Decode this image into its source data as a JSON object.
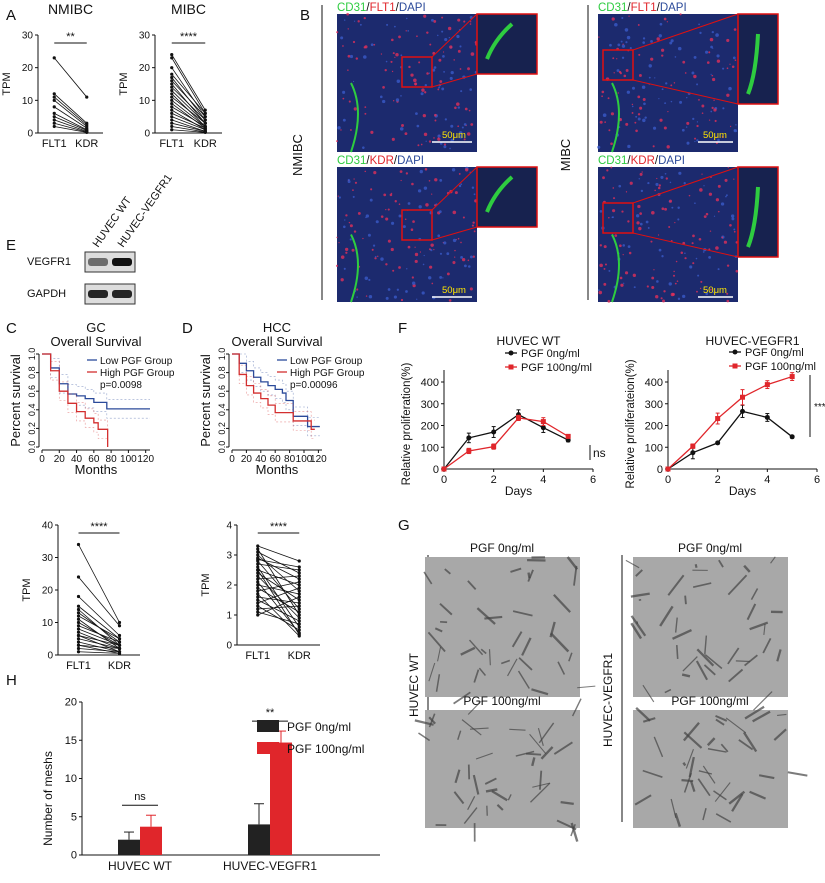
{
  "panel_labels": {
    "A": "A",
    "B": "B",
    "C": "C",
    "D": "D",
    "E": "E",
    "F": "F",
    "G": "G",
    "H": "H"
  },
  "colors": {
    "black": "#1a1a1a",
    "red": "#e0262b",
    "blue": "#2b4a9a",
    "km_red": "#d32f2f",
    "green": "#2ecc40",
    "dapi": "#1c2a6e"
  },
  "panel_b": {
    "row_labels": [
      "NMIBC",
      "MIBC"
    ],
    "titles": [
      {
        "cd31": "CD31",
        "sep1": "/",
        "marker": "FLT1",
        "sep2": "/",
        "dapi": "DAPI"
      },
      {
        "cd31": "CD31",
        "sep1": "/",
        "marker": "KDR",
        "sep2": "/",
        "dapi": "DAPI"
      }
    ],
    "scale_bar": "50μm"
  },
  "panel_e": {
    "lanes": [
      "HUVEC WT",
      "HUVEC-VEGFR1"
    ],
    "rows": [
      "VEGFR1",
      "GAPDH"
    ],
    "band_intensity": [
      [
        0.55,
        1.0
      ],
      [
        0.9,
        0.9
      ]
    ]
  },
  "panel_g": {
    "row_labels": [
      "HUVEC WT",
      "HUVEC-VEGFR1"
    ],
    "col_titles": [
      "PGF 0ng/ml",
      "PGF 100ng/ml"
    ]
  },
  "chart_data": [
    {
      "id": "A1",
      "type": "paired-line",
      "title": "NMIBC",
      "ylabel": "TPM",
      "categories": [
        "FLT1",
        "KDR"
      ],
      "ylim": [
        0,
        30
      ],
      "yticks": [
        0,
        10,
        20,
        30
      ],
      "significance": "**",
      "pairs": [
        [
          23,
          11
        ],
        [
          12,
          3
        ],
        [
          11,
          2.5
        ],
        [
          10,
          2
        ],
        [
          8,
          1.5
        ],
        [
          6,
          1
        ],
        [
          5,
          0.8
        ],
        [
          4,
          0.5
        ],
        [
          3,
          0.3
        ],
        [
          2,
          0.2
        ]
      ]
    },
    {
      "id": "A2",
      "type": "paired-line",
      "title": "MIBC",
      "ylabel": "TPM",
      "categories": [
        "FLT1",
        "KDR"
      ],
      "ylim": [
        0,
        30
      ],
      "yticks": [
        0,
        10,
        20,
        30
      ],
      "significance": "****",
      "pairs": [
        [
          24,
          7
        ],
        [
          23,
          6
        ],
        [
          20,
          5
        ],
        [
          18,
          6
        ],
        [
          17,
          4
        ],
        [
          16,
          5
        ],
        [
          15,
          3
        ],
        [
          14,
          4
        ],
        [
          13,
          3
        ],
        [
          12,
          2
        ],
        [
          11,
          3
        ],
        [
          10,
          2
        ],
        [
          9,
          1.5
        ],
        [
          8,
          2
        ],
        [
          7,
          1
        ],
        [
          6,
          1.5
        ],
        [
          5,
          1
        ],
        [
          4,
          0.5
        ],
        [
          3,
          0.5
        ],
        [
          2,
          0.3
        ],
        [
          1,
          0.2
        ]
      ]
    },
    {
      "id": "C_km",
      "type": "line",
      "title": "GC",
      "subtitle": "Overall Survival",
      "xlabel": "Months",
      "ylabel": "Percent survival",
      "xlim": [
        0,
        125
      ],
      "ylim": [
        0,
        1
      ],
      "xticks": [
        0,
        20,
        40,
        60,
        80,
        100,
        120
      ],
      "yticks": [
        "0.0",
        "0.2",
        "0.4",
        "0.6",
        "0.8",
        "1.0"
      ],
      "p_value": "p=0.0098",
      "series": [
        {
          "name": "Low PGF Group",
          "x": [
            0,
            10,
            20,
            30,
            40,
            50,
            60,
            70,
            75,
            125
          ],
          "y": [
            1,
            0.85,
            0.68,
            0.57,
            0.55,
            0.52,
            0.48,
            0.48,
            0.41,
            0.41
          ]
        },
        {
          "name": "High PGF Group",
          "x": [
            0,
            10,
            20,
            30,
            40,
            50,
            60,
            65,
            75,
            76
          ],
          "y": [
            1,
            0.82,
            0.6,
            0.47,
            0.38,
            0.31,
            0.26,
            0.19,
            0.19,
            0
          ]
        }
      ]
    },
    {
      "id": "D_km",
      "type": "line",
      "title": "HCC",
      "subtitle": "Overall Survival",
      "xlabel": "Months",
      "ylabel": "Percent survival",
      "xlim": [
        0,
        125
      ],
      "ylim": [
        0,
        1
      ],
      "xticks": [
        0,
        20,
        40,
        60,
        80,
        100,
        120
      ],
      "yticks": [
        "0.0",
        "0.2",
        "0.4",
        "0.6",
        "0.8",
        "1.0"
      ],
      "p_value": "p=0.00096",
      "series": [
        {
          "name": "Low PGF Group",
          "x": [
            0,
            10,
            20,
            30,
            40,
            50,
            60,
            70,
            75,
            85,
            105,
            122
          ],
          "y": [
            1,
            0.9,
            0.82,
            0.75,
            0.7,
            0.66,
            0.62,
            0.58,
            0.5,
            0.33,
            0.22,
            0.22
          ]
        },
        {
          "name": "High PGF Group",
          "x": [
            0,
            10,
            20,
            30,
            40,
            50,
            60,
            70,
            85,
            95,
            110,
            115
          ],
          "y": [
            1,
            0.78,
            0.66,
            0.58,
            0.52,
            0.45,
            0.37,
            0.37,
            0.28,
            0.28,
            0.19,
            0.19
          ]
        }
      ]
    },
    {
      "id": "C_tpm",
      "type": "paired-line",
      "ylabel": "TPM",
      "categories": [
        "FLT1",
        "KDR"
      ],
      "ylim": [
        0,
        40
      ],
      "yticks": [
        0,
        10,
        20,
        30,
        40
      ],
      "significance": "****",
      "pairs": [
        [
          34,
          10
        ],
        [
          24,
          9
        ],
        [
          18,
          6
        ],
        [
          15,
          5
        ],
        [
          13,
          4
        ],
        [
          12,
          5
        ],
        [
          10,
          3
        ],
        [
          9,
          4
        ],
        [
          8,
          3
        ],
        [
          7,
          2
        ],
        [
          6,
          3
        ],
        [
          5,
          2
        ],
        [
          4,
          1
        ],
        [
          3,
          2
        ],
        [
          2,
          1
        ],
        [
          1,
          0.5
        ],
        [
          11,
          2
        ],
        [
          14,
          3
        ],
        [
          6,
          1
        ],
        [
          3,
          0.5
        ]
      ]
    },
    {
      "id": "D_tpm",
      "type": "paired-line",
      "ylabel": "TPM",
      "categories": [
        "FLT1",
        "KDR"
      ],
      "ylim": [
        0,
        4
      ],
      "yticks": [
        0,
        1,
        2,
        3,
        4
      ],
      "significance": "****",
      "pairs": [
        [
          3.3,
          2.8
        ],
        [
          3.1,
          2.4
        ],
        [
          3,
          1.8
        ],
        [
          2.9,
          2.2
        ],
        [
          2.8,
          1.2
        ],
        [
          2.7,
          2.5
        ],
        [
          2.6,
          0.6
        ],
        [
          2.5,
          2
        ],
        [
          2.4,
          1.5
        ],
        [
          2.3,
          0.9
        ],
        [
          2.2,
          2.3
        ],
        [
          2.1,
          0.4
        ],
        [
          2,
          1.7
        ],
        [
          1.9,
          1.1
        ],
        [
          1.8,
          2.1
        ],
        [
          1.7,
          0.3
        ],
        [
          1.6,
          1.4
        ],
        [
          1.5,
          0.8
        ],
        [
          1.4,
          1.9
        ],
        [
          1.3,
          0.5
        ],
        [
          1.2,
          1.3
        ],
        [
          1.1,
          0.7
        ],
        [
          1,
          1.6
        ],
        [
          2.5,
          0.35
        ],
        [
          3.2,
          1
        ],
        [
          2.85,
          2.6
        ]
      ]
    },
    {
      "id": "F_wt",
      "type": "line",
      "title": "HUVEC WT",
      "xlabel": "Days",
      "ylabel": "Relative proliferation(%)",
      "xlim": [
        0,
        6
      ],
      "ylim": [
        0,
        450
      ],
      "xticks": [
        0,
        2,
        4,
        6
      ],
      "yticks": [
        0,
        100,
        200,
        300,
        400
      ],
      "significance": "ns",
      "x": [
        0,
        1,
        2,
        3,
        4,
        5
      ],
      "series": [
        {
          "name": "PGF 0ng/ml",
          "values": [
            0,
            143,
            170,
            250,
            190,
            133
          ],
          "errors": [
            5,
            22,
            25,
            22,
            22,
            8
          ]
        },
        {
          "name": "PGF 100ng/ml",
          "values": [
            0,
            83,
            103,
            235,
            218,
            150
          ],
          "errors": [
            5,
            12,
            12,
            12,
            18,
            8
          ]
        }
      ]
    },
    {
      "id": "F_vegfr1",
      "type": "line",
      "title": "HUVEC-VEGFR1",
      "xlabel": "Days",
      "ylabel": "Relative proliferateion(%)",
      "xlim": [
        0,
        6
      ],
      "ylim": [
        0,
        450
      ],
      "xticks": [
        0,
        2,
        4,
        6
      ],
      "yticks": [
        0,
        100,
        200,
        300,
        400
      ],
      "significance": "****",
      "x": [
        0,
        1,
        2,
        3,
        4,
        5
      ],
      "series": [
        {
          "name": "PGF 0ng/ml",
          "values": [
            0,
            75,
            120,
            265,
            237,
            148
          ],
          "errors": [
            5,
            28,
            5,
            28,
            18,
            5
          ]
        },
        {
          "name": "PGF 100ng/ml",
          "values": [
            0,
            105,
            232,
            330,
            388,
            425
          ],
          "errors": [
            5,
            10,
            25,
            35,
            18,
            18
          ]
        }
      ]
    },
    {
      "id": "H",
      "type": "bar",
      "ylabel": "Number of meshs",
      "categories": [
        "HUVEC WT",
        "HUVEC-VEGFR1"
      ],
      "ylim": [
        0,
        20
      ],
      "yticks": [
        0,
        5,
        10,
        15,
        20
      ],
      "significance": [
        "ns",
        "**"
      ],
      "series": [
        {
          "name": "PGF 0ng/ml",
          "values": [
            2,
            4
          ],
          "errors": [
            1,
            2.7
          ]
        },
        {
          "name": "PGF 100ng/ml",
          "values": [
            3.7,
            14.7
          ],
          "errors": [
            1.5,
            1.5
          ]
        }
      ]
    }
  ]
}
